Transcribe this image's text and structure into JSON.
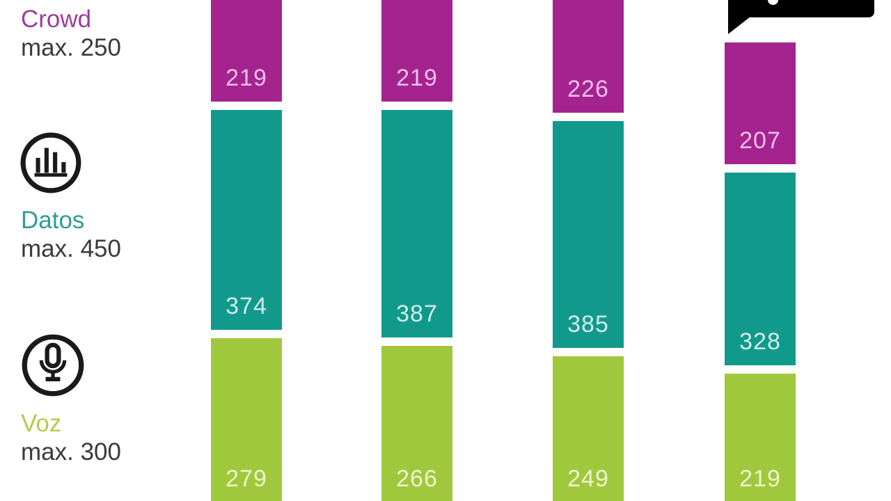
{
  "chart_data": {
    "type": "bar",
    "stacked": true,
    "orientation": "vertical",
    "categories": [
      "",
      "",
      "",
      ""
    ],
    "series": [
      {
        "name": "Crowd",
        "max_label": "max. 250",
        "color": "#a5238f",
        "label_color": "#f0bfe7",
        "values": [
          219,
          219,
          226,
          207
        ]
      },
      {
        "name": "Datos",
        "max_label": "max. 450",
        "color": "#119a8c",
        "label_color": "#d2ecea",
        "values": [
          374,
          387,
          385,
          328
        ]
      },
      {
        "name": "Voz",
        "max_label": "max. 300",
        "color": "#a0c83c",
        "label_color": "#edf4d0",
        "values": [
          279,
          266,
          249,
          219
        ]
      }
    ],
    "value_labels_position": "inside-bottom",
    "legend_position": "left"
  },
  "legend": {
    "items": [
      {
        "label": "Crowd",
        "max_label": "max. 250",
        "label_color": "#9e3c9e",
        "icon": null
      },
      {
        "label": "Datos",
        "max_label": "max. 450",
        "label_color": "#2f9d90",
        "icon": "bar-chart-circle-icon"
      },
      {
        "label": "Voz",
        "max_label": "max. 300",
        "label_color": "#b2cc4e",
        "icon": "microphone-circle-icon"
      }
    ],
    "max_text_color": "#3a3a3a",
    "icon_color": "#1a1a1a"
  },
  "speech_bubble": {
    "color": "#000000",
    "text_visible": ""
  }
}
